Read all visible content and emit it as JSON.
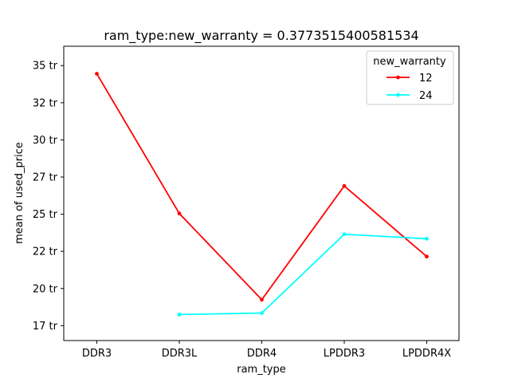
{
  "chart_data": {
    "type": "line",
    "title": "ram_type:new_warranty = 0.3773515400581534",
    "xlabel": "ram_type",
    "ylabel": "mean of used_price",
    "categories": [
      "DDR3",
      "DDR3L",
      "DDR4",
      "LPDDR3",
      "LPDDR4X"
    ],
    "ylim": [
      16500000,
      36300000
    ],
    "yticks": [
      17500000,
      20000000,
      22500000,
      25000000,
      27500000,
      30000000,
      32500000,
      35000000
    ],
    "ytick_labels": [
      "17 tr",
      "20 tr",
      "22 tr",
      "25 tr",
      "27 tr",
      "30 tr",
      "32 tr",
      "35 tr"
    ],
    "legend": {
      "title": "new_warranty",
      "position": "top-right"
    },
    "series": [
      {
        "name": "12",
        "color": "#ff0000",
        "values": [
          34450000,
          25050000,
          19250000,
          26900000,
          22150000
        ]
      },
      {
        "name": "24",
        "color": "#00ffff",
        "values": [
          null,
          18250000,
          18350000,
          23650000,
          23350000
        ]
      }
    ],
    "grid": false
  }
}
